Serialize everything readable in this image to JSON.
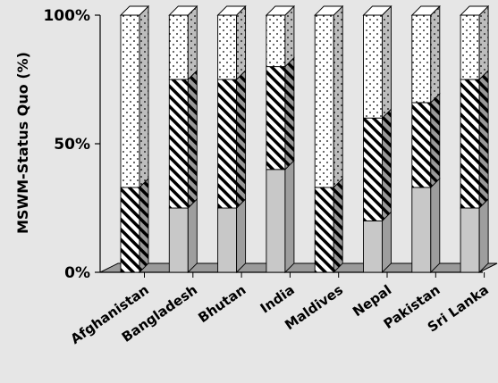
{
  "chart_data": {
    "type": "bar",
    "stacked": true,
    "percent": true,
    "three_d": true,
    "title": "",
    "xlabel": "",
    "ylabel": "MSWM-Status Quo (%)",
    "ylim": [
      0,
      100
    ],
    "y_ticks": [
      "0%",
      "50%",
      "100%"
    ],
    "categories": [
      "Afghanistan",
      "Bangladesh",
      "Bhutan",
      "India",
      "Maldives",
      "Nepal",
      "Pakistan",
      "Sri Lanka"
    ],
    "series": [
      {
        "values": [
          0,
          25,
          25,
          40,
          0,
          20,
          33,
          25
        ],
        "fill": "solid",
        "color": "#c8c8c8"
      },
      {
        "values": [
          33,
          50,
          50,
          40,
          33,
          40,
          33,
          50
        ],
        "fill": "diagonal-hatch",
        "color": "#000000"
      },
      {
        "values": [
          67,
          25,
          25,
          20,
          67,
          40,
          34,
          25
        ],
        "fill": "dotted",
        "color": "#ffffff"
      }
    ],
    "grid": false,
    "legend": "none",
    "floor_color": "#9a9a9a"
  }
}
